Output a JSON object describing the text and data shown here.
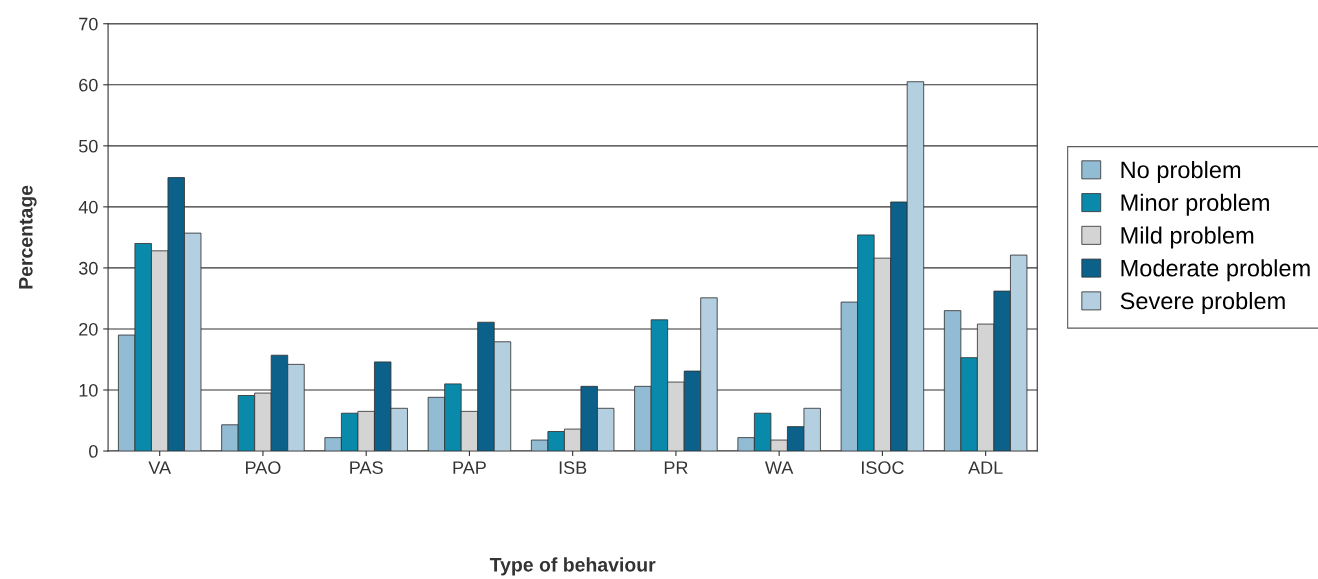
{
  "chart_data": {
    "type": "bar",
    "xlabel": "Type of behaviour",
    "ylabel": "Percentage",
    "categories": [
      "VA",
      "PAO",
      "PAS",
      "PAP",
      "ISB",
      "PR",
      "WA",
      "ISOC",
      "ADL"
    ],
    "series": [
      {
        "name": "No problem",
        "color": "#92bcd4",
        "values": [
          19,
          4.3,
          2.2,
          8.8,
          1.8,
          10.6,
          2.2,
          24.4,
          23
        ]
      },
      {
        "name": "Minor problem",
        "color": "#0a8aab",
        "values": [
          34,
          9.1,
          6.2,
          11,
          3.2,
          21.5,
          6.2,
          35.4,
          15.3
        ]
      },
      {
        "name": "Mild problem",
        "color": "#d4d4d4",
        "values": [
          32.8,
          9.5,
          6.5,
          6.5,
          3.6,
          11.3,
          1.8,
          31.6,
          20.8
        ]
      },
      {
        "name": "Moderate problem",
        "color": "#0b6189",
        "values": [
          44.8,
          15.7,
          14.6,
          21.1,
          10.6,
          13.1,
          4,
          40.8,
          26.2
        ]
      },
      {
        "name": "Severe problem",
        "color": "#b4cfe0",
        "values": [
          35.7,
          14.2,
          7,
          17.9,
          7,
          25.1,
          7,
          60.5,
          32.1
        ]
      }
    ],
    "ylim": [
      0,
      70
    ],
    "yticks": [
      0,
      10,
      20,
      30,
      40,
      50,
      60,
      70
    ],
    "grid": "y",
    "legend": "right"
  }
}
